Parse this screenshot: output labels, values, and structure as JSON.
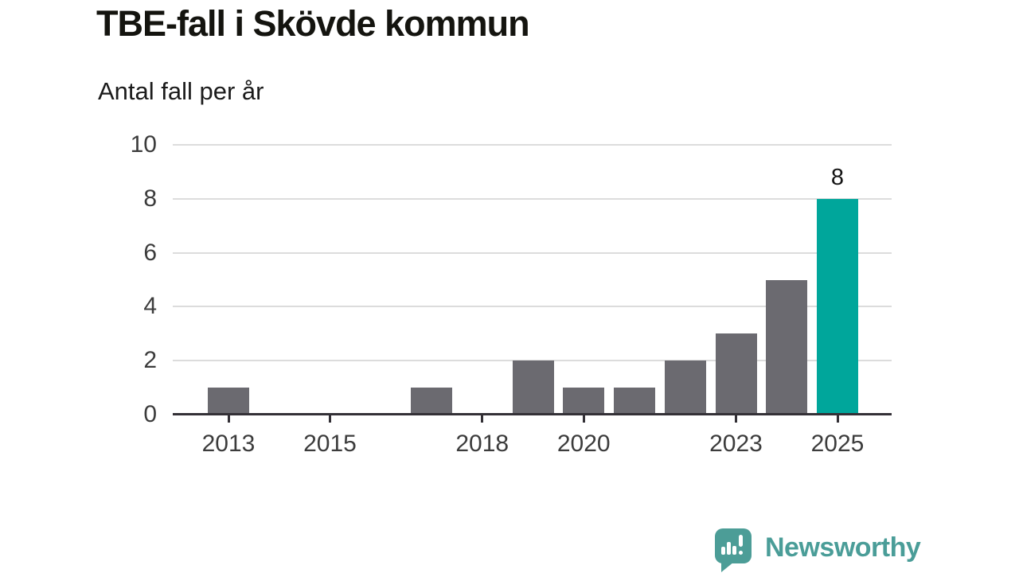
{
  "header": {
    "title": "TBE-fall i Skövde kommun",
    "subtitle": "Antal fall per år"
  },
  "chart_data": {
    "type": "bar",
    "title": "TBE-fall i Skövde kommun",
    "ylabel": "Antal fall per år",
    "xlabel": "",
    "categories": [
      2013,
      2014,
      2015,
      2016,
      2017,
      2018,
      2019,
      2020,
      2021,
      2022,
      2023,
      2024,
      2025
    ],
    "values": [
      1,
      0,
      0,
      0,
      1,
      0,
      2,
      1,
      1,
      2,
      3,
      5,
      8
    ],
    "ylim": [
      0,
      10
    ],
    "yticks": [
      0,
      2,
      4,
      6,
      8,
      10
    ],
    "xticks": [
      2013,
      2015,
      2018,
      2020,
      2023,
      2025
    ],
    "grid": true,
    "legend": false,
    "highlight_category": 2025,
    "highlight_value_label": "8",
    "bar_color": "#6b6a70",
    "highlight_color": "#00a69b",
    "gridline_color": "#dcdcdc",
    "axis_color": "#333036",
    "tick_label_color": "#3c3c3c"
  },
  "footer": {
    "brand": "Newsworthy",
    "brand_color": "#4a9d98"
  }
}
